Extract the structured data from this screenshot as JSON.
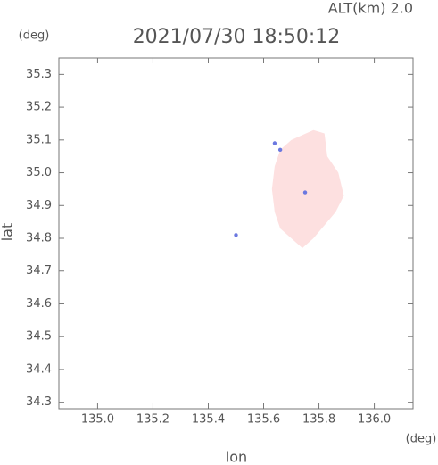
{
  "chart_data": {
    "type": "map",
    "title": "2021/07/30 18:50:12",
    "subtitle": "ALT(km)  2.0",
    "y_unit": "(deg)",
    "x_unit": "(deg)",
    "xlabel": "lon",
    "ylabel": "lat",
    "xlim": [
      134.86,
      136.14
    ],
    "ylim": [
      34.28,
      35.35
    ],
    "xticks": [
      {
        "value": 135,
        "label": "135.0"
      },
      135.2,
      135.4,
      135.6,
      135.8,
      {
        "value": 136,
        "label": "136.0"
      }
    ],
    "yticks": [
      34.3,
      34.4,
      34.5,
      34.6,
      34.7,
      34.8,
      34.9,
      {
        "value": 35,
        "label": "35.0"
      },
      35.1,
      35.2,
      35.3
    ],
    "regions": [
      {
        "color": "#fde0e0",
        "lon": [
          135.66,
          135.7,
          135.78,
          135.82,
          135.83,
          135.87,
          135.89,
          135.86,
          135.82,
          135.78,
          135.74,
          135.7,
          135.66,
          135.64,
          135.63,
          135.64
        ],
        "lat": [
          35.07,
          35.1,
          35.13,
          35.12,
          35.05,
          35.0,
          34.93,
          34.88,
          34.84,
          34.8,
          34.77,
          34.8,
          34.83,
          34.88,
          34.95,
          35.02
        ]
      }
    ],
    "points": {
      "color": "#6b78e0",
      "lon": [
        135.64,
        135.66,
        135.5,
        135.75
      ],
      "lat": [
        35.09,
        35.07,
        34.81,
        34.94
      ]
    }
  }
}
